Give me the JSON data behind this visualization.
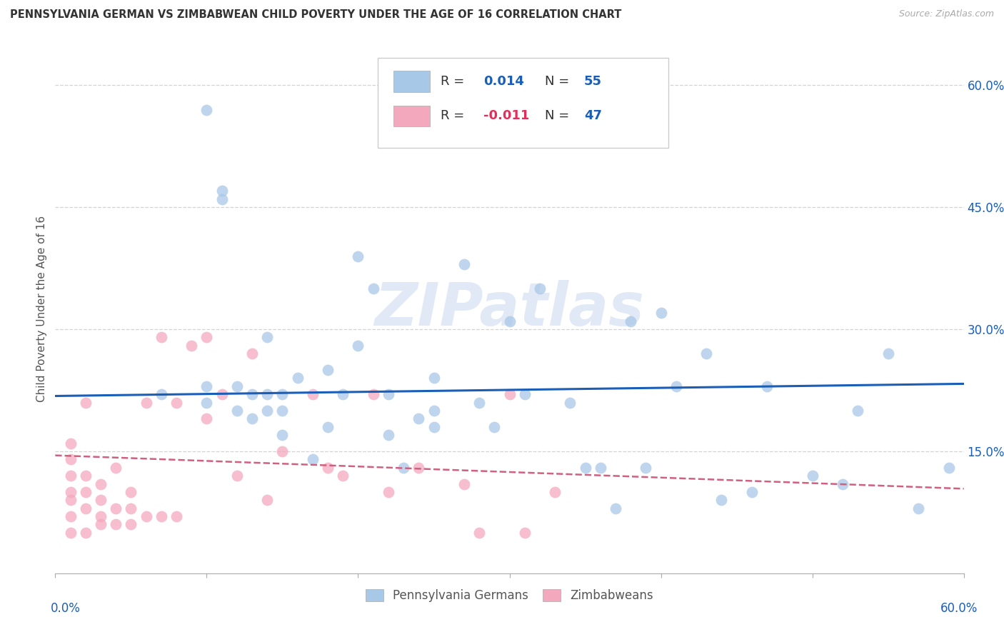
{
  "title": "PENNSYLVANIA GERMAN VS ZIMBABWEAN CHILD POVERTY UNDER THE AGE OF 16 CORRELATION CHART",
  "source": "Source: ZipAtlas.com",
  "ylabel": "Child Poverty Under the Age of 16",
  "xlim": [
    0.0,
    0.6
  ],
  "ylim": [
    0.0,
    0.65
  ],
  "xticks": [
    0.0,
    0.1,
    0.2,
    0.3,
    0.4,
    0.5,
    0.6
  ],
  "xticklabels_left": "0.0%",
  "xticklabels_right": "60.0%",
  "yticks": [
    0.15,
    0.3,
    0.45,
    0.6
  ],
  "yticklabels": [
    "15.0%",
    "30.0%",
    "45.0%",
    "60.0%"
  ],
  "legend_label1": "Pennsylvania Germans",
  "legend_label2": "Zimbabweans",
  "r1": "0.014",
  "n1": "55",
  "r2": "-0.011",
  "n2": "47",
  "blue_color": "#a8c8e8",
  "pink_color": "#f4a8be",
  "trend_blue": "#1a5eb8",
  "trend_pink": "#d06080",
  "watermark": "ZIPatlas",
  "blue_scatter_x": [
    0.07,
    0.1,
    0.1,
    0.1,
    0.11,
    0.11,
    0.12,
    0.12,
    0.13,
    0.13,
    0.14,
    0.14,
    0.14,
    0.15,
    0.15,
    0.15,
    0.16,
    0.17,
    0.18,
    0.18,
    0.19,
    0.2,
    0.2,
    0.21,
    0.22,
    0.22,
    0.23,
    0.24,
    0.25,
    0.25,
    0.25,
    0.27,
    0.28,
    0.29,
    0.3,
    0.31,
    0.32,
    0.34,
    0.35,
    0.36,
    0.37,
    0.38,
    0.39,
    0.4,
    0.41,
    0.43,
    0.44,
    0.46,
    0.47,
    0.5,
    0.52,
    0.53,
    0.55,
    0.57,
    0.59
  ],
  "blue_scatter_y": [
    0.22,
    0.21,
    0.23,
    0.57,
    0.46,
    0.47,
    0.2,
    0.23,
    0.22,
    0.19,
    0.2,
    0.22,
    0.29,
    0.17,
    0.2,
    0.22,
    0.24,
    0.14,
    0.18,
    0.25,
    0.22,
    0.28,
    0.39,
    0.35,
    0.17,
    0.22,
    0.13,
    0.19,
    0.24,
    0.18,
    0.2,
    0.38,
    0.21,
    0.18,
    0.31,
    0.22,
    0.35,
    0.21,
    0.13,
    0.13,
    0.08,
    0.31,
    0.13,
    0.32,
    0.23,
    0.27,
    0.09,
    0.1,
    0.23,
    0.12,
    0.11,
    0.2,
    0.27,
    0.08,
    0.13
  ],
  "pink_scatter_x": [
    0.01,
    0.01,
    0.01,
    0.01,
    0.01,
    0.01,
    0.01,
    0.02,
    0.02,
    0.02,
    0.02,
    0.02,
    0.03,
    0.03,
    0.03,
    0.03,
    0.04,
    0.04,
    0.04,
    0.05,
    0.05,
    0.05,
    0.06,
    0.06,
    0.07,
    0.07,
    0.08,
    0.08,
    0.09,
    0.1,
    0.1,
    0.11,
    0.12,
    0.13,
    0.14,
    0.15,
    0.17,
    0.18,
    0.19,
    0.21,
    0.22,
    0.24,
    0.27,
    0.28,
    0.3,
    0.31,
    0.33
  ],
  "pink_scatter_y": [
    0.05,
    0.07,
    0.09,
    0.1,
    0.12,
    0.14,
    0.16,
    0.05,
    0.08,
    0.1,
    0.12,
    0.21,
    0.06,
    0.07,
    0.09,
    0.11,
    0.06,
    0.08,
    0.13,
    0.06,
    0.08,
    0.1,
    0.07,
    0.21,
    0.07,
    0.29,
    0.07,
    0.21,
    0.28,
    0.19,
    0.29,
    0.22,
    0.12,
    0.27,
    0.09,
    0.15,
    0.22,
    0.13,
    0.12,
    0.22,
    0.1,
    0.13,
    0.11,
    0.05,
    0.22,
    0.05,
    0.1
  ],
  "blue_trend_x": [
    0.0,
    0.6
  ],
  "blue_trend_y": [
    0.218,
    0.233
  ],
  "pink_trend_x": [
    0.0,
    0.6
  ],
  "pink_trend_y": [
    0.145,
    0.104
  ]
}
